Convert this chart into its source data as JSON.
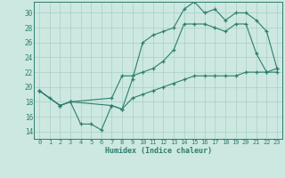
{
  "xlabel": "Humidex (Indice chaleur)",
  "bg_color": "#cce8e0",
  "line_color": "#2e7d6e",
  "grid_color": "#aacfc4",
  "xlim": [
    -0.5,
    23.5
  ],
  "ylim": [
    13.0,
    31.5
  ],
  "yticks": [
    14,
    16,
    18,
    20,
    22,
    24,
    26,
    28,
    30
  ],
  "xticks": [
    0,
    1,
    2,
    3,
    4,
    5,
    6,
    7,
    8,
    9,
    10,
    11,
    12,
    13,
    14,
    15,
    16,
    17,
    18,
    19,
    20,
    21,
    22,
    23
  ],
  "curve1_x": [
    0,
    1,
    2,
    3,
    4,
    5,
    6,
    7,
    8,
    9,
    10,
    11,
    12,
    13,
    14,
    15,
    16,
    17,
    18,
    19,
    20,
    21,
    22,
    23
  ],
  "curve1_y": [
    19.5,
    18.5,
    17.5,
    18.0,
    15.0,
    15.0,
    14.2,
    17.5,
    17.0,
    21.0,
    26.0,
    27.0,
    27.5,
    28.0,
    30.5,
    31.5,
    30.0,
    30.5,
    29.0,
    30.0,
    30.0,
    29.0,
    27.5,
    22.5
  ],
  "curve2_x": [
    0,
    2,
    3,
    7,
    8,
    9,
    10,
    11,
    12,
    13,
    14,
    15,
    16,
    17,
    18,
    19,
    20,
    21,
    22,
    23
  ],
  "curve2_y": [
    19.5,
    17.5,
    18.0,
    18.5,
    21.5,
    21.5,
    22.0,
    22.5,
    23.5,
    25.0,
    28.5,
    28.5,
    28.5,
    28.0,
    27.5,
    28.5,
    28.5,
    24.5,
    22.0,
    22.0
  ],
  "curve3_x": [
    0,
    2,
    3,
    7,
    8,
    9,
    10,
    11,
    12,
    13,
    14,
    15,
    16,
    17,
    18,
    19,
    20,
    21,
    22,
    23
  ],
  "curve3_y": [
    19.5,
    17.5,
    18.0,
    17.5,
    17.0,
    18.5,
    19.0,
    19.5,
    20.0,
    20.5,
    21.0,
    21.5,
    21.5,
    21.5,
    21.5,
    21.5,
    22.0,
    22.0,
    22.0,
    22.5
  ]
}
